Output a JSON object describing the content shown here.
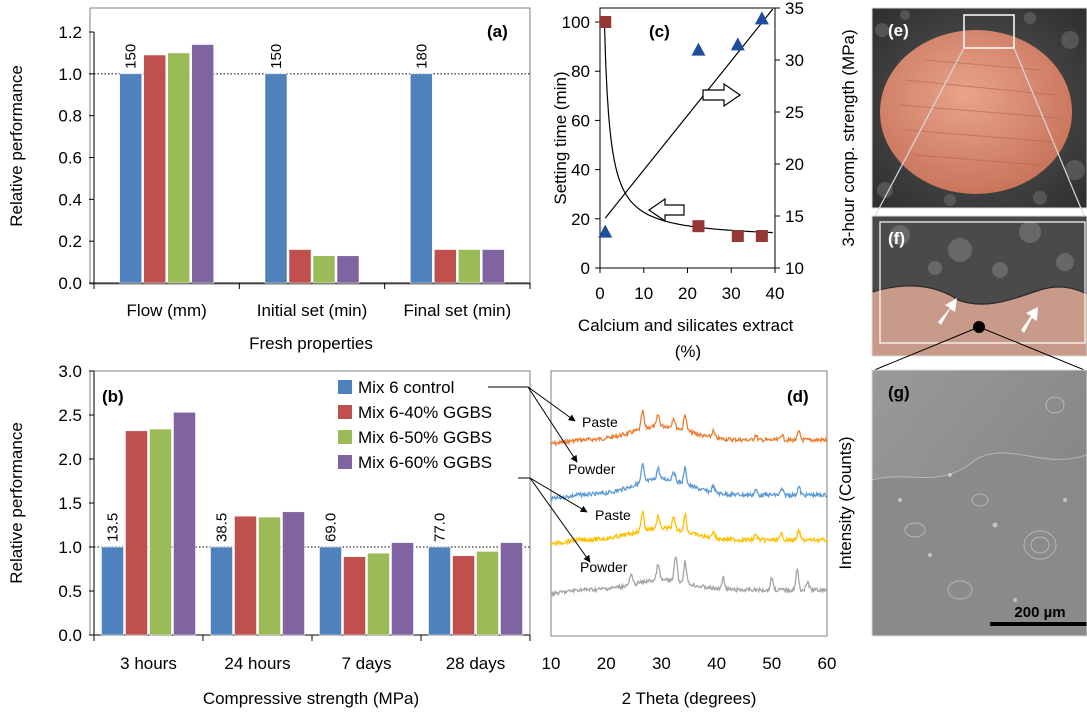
{
  "colors": {
    "blue": "#4f81bd",
    "red": "#c0504d",
    "green": "#9bbb59",
    "purple": "#8064a2",
    "marker_red": "#953735",
    "marker_blue": "#1f4e9c",
    "xrd_orange": "#ed7d31",
    "xrd_blue": "#5b9bd5",
    "xrd_gold": "#ffc000",
    "xrd_gray": "#a5a5a5"
  },
  "chart_data": [
    {
      "id": "a",
      "type": "bar",
      "panel_label": "(a)",
      "xlabel": "Fresh properties",
      "ylabel": "Relative performance",
      "ylim": [
        0,
        1.2
      ],
      "yticks": [
        "0.0",
        "0.2",
        "0.4",
        "0.6",
        "0.8",
        "1.0",
        "1.2"
      ],
      "categories": [
        "Flow (mm)",
        "Initial set (min)",
        "Final set (min)"
      ],
      "reference_line": 1.0,
      "control_labels": [
        "150",
        "150",
        "180"
      ],
      "series": [
        {
          "name": "Mix 6 control",
          "values": [
            1.0,
            1.0,
            1.0
          ]
        },
        {
          "name": "Mix 6-40% GGBS",
          "values": [
            1.09,
            0.16,
            0.16
          ]
        },
        {
          "name": "Mix 6-50% GGBS",
          "values": [
            1.1,
            0.13,
            0.16
          ]
        },
        {
          "name": "Mix 6-60% GGBS",
          "values": [
            1.14,
            0.13,
            0.16
          ]
        }
      ]
    },
    {
      "id": "b",
      "type": "bar",
      "panel_label": "(b)",
      "xlabel": "Compressive strength (MPa)",
      "ylabel": "Relative performance",
      "ylim": [
        0,
        3.0
      ],
      "yticks": [
        "0.0",
        "0.5",
        "1.0",
        "1.5",
        "2.0",
        "2.5",
        "3.0"
      ],
      "categories": [
        "3 hours",
        "24 hours",
        "7 days",
        "28 days"
      ],
      "reference_line": 1.0,
      "control_labels": [
        "13.5",
        "38.5",
        "69.0",
        "77.0"
      ],
      "legend": [
        "Mix 6 control",
        "Mix 6-40% GGBS",
        "Mix 6-50% GGBS",
        "Mix 6-60% GGBS"
      ],
      "series": [
        {
          "name": "Mix 6 control",
          "values": [
            1.0,
            1.0,
            1.0,
            1.0
          ]
        },
        {
          "name": "Mix 6-40% GGBS",
          "values": [
            2.32,
            1.35,
            0.89,
            0.9
          ]
        },
        {
          "name": "Mix 6-50% GGBS",
          "values": [
            2.34,
            1.34,
            0.93,
            0.95
          ]
        },
        {
          "name": "Mix 6-60% GGBS",
          "values": [
            2.53,
            1.4,
            1.05,
            1.05
          ]
        }
      ]
    },
    {
      "id": "c",
      "type": "scatter",
      "panel_label": "(c)",
      "xlabel": "Calcium and silicates extract (%)",
      "ylabel": "Setting time (min)",
      "y2label": "3-hour comp. strength (MPa)",
      "xlim": [
        0,
        40
      ],
      "ylim": [
        0,
        100
      ],
      "y2lim": [
        10,
        35
      ],
      "xticks": [
        "0",
        "10",
        "20",
        "30",
        "40"
      ],
      "yticks": [
        "0",
        "20",
        "40",
        "60",
        "80",
        "100"
      ],
      "y2ticks": [
        "10",
        "15",
        "20",
        "25",
        "30",
        "35"
      ],
      "series": [
        {
          "marker": "square",
          "axis": "left",
          "x": [
            1.2,
            22.5,
            31.5,
            37.0
          ],
          "y": [
            100,
            17,
            13,
            13
          ]
        },
        {
          "marker": "triangle",
          "axis": "right",
          "x": [
            1.2,
            22.5,
            31.5,
            37.0
          ],
          "y": [
            13.5,
            31,
            31.5,
            34
          ]
        }
      ],
      "fit_lines": [
        {
          "x": [
            1.2,
            39.5
          ],
          "y": [
            14.8,
            34.9
          ],
          "axis": "right"
        }
      ]
    },
    {
      "id": "d",
      "type": "line",
      "panel_label": "(d)",
      "xlabel": "2 Theta (degrees)",
      "ylabel": "Intensity (Counts)",
      "xlim": [
        10,
        60
      ],
      "xticks": [
        "10",
        "20",
        "30",
        "40",
        "50",
        "60"
      ],
      "traces": [
        {
          "label": "Paste",
          "color_key": "xrd_orange"
        },
        {
          "label": "Powder",
          "color_key": "xrd_blue"
        },
        {
          "label": "Paste",
          "color_key": "xrd_gold"
        },
        {
          "label": "Powder",
          "color_key": "xrd_gray"
        }
      ]
    }
  ],
  "images": {
    "e": {
      "label": "(e)"
    },
    "f": {
      "label": "(f)"
    },
    "g": {
      "label": "(g)",
      "scale_bar": "200 µm"
    }
  }
}
